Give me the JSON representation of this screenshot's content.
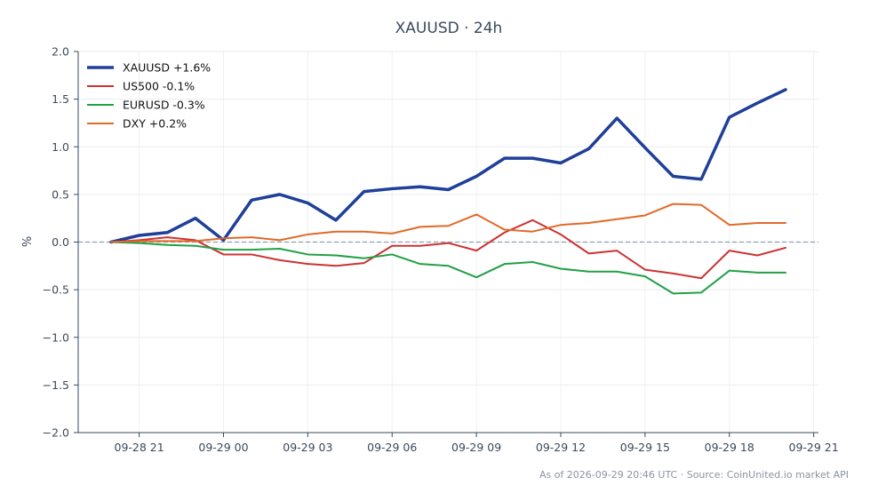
{
  "chart_data": {
    "type": "line",
    "title": "XAUUSD · 24h",
    "ylabel": "%",
    "xlabel": "",
    "ylim": [
      -2.0,
      2.0
    ],
    "yticks": [
      2.0,
      1.5,
      1.0,
      0.5,
      0.0,
      -0.5,
      -1.0,
      -1.5,
      -2.0
    ],
    "ytick_labels": [
      "2.0",
      "1.5",
      "1.0",
      "0.5",
      "0.0",
      "−0.5",
      "−1.0",
      "−1.5",
      "−2.0"
    ],
    "x_start": "2026-09-28 20:00",
    "x_end": "2026-09-29 20:00",
    "xticks": [
      "2026-09-28 21:00",
      "2026-09-29 00:00",
      "2026-09-29 03:00",
      "2026-09-29 06:00",
      "2026-09-29 09:00",
      "2026-09-29 12:00",
      "2026-09-29 15:00",
      "2026-09-29 18:00",
      "2026-09-29 21:00"
    ],
    "xtick_labels": [
      "09-28 21",
      "09-29 00",
      "09-29 03",
      "09-29 06",
      "09-29 09",
      "09-29 12",
      "09-29 15",
      "09-29 18",
      "09-29 21"
    ],
    "x": [
      "2026-09-28 20:00",
      "2026-09-28 21:00",
      "2026-09-28 22:00",
      "2026-09-28 23:00",
      "2026-09-29 00:00",
      "2026-09-29 01:00",
      "2026-09-29 02:00",
      "2026-09-29 03:00",
      "2026-09-29 04:00",
      "2026-09-29 05:00",
      "2026-09-29 06:00",
      "2026-09-29 07:00",
      "2026-09-29 08:00",
      "2026-09-29 09:00",
      "2026-09-29 10:00",
      "2026-09-29 11:00",
      "2026-09-29 12:00",
      "2026-09-29 13:00",
      "2026-09-29 14:00",
      "2026-09-29 15:00",
      "2026-09-29 16:00",
      "2026-09-29 17:00",
      "2026-09-29 18:00",
      "2026-09-29 19:00",
      "2026-09-29 20:00"
    ],
    "series": [
      {
        "name": "XAUUSD +1.6%",
        "color": "#1f3f99",
        "values": [
          0.0,
          0.07,
          0.1,
          0.25,
          0.02,
          0.44,
          0.5,
          0.41,
          0.23,
          0.53,
          0.56,
          0.58,
          0.55,
          0.69,
          0.88,
          0.88,
          0.83,
          0.98,
          1.3,
          0.99,
          0.69,
          0.66,
          1.31,
          1.46,
          1.6
        ]
      },
      {
        "name": "US500 -0.1%",
        "color": "#cc3333",
        "values": [
          0.0,
          0.02,
          0.05,
          0.02,
          -0.13,
          -0.13,
          -0.19,
          -0.23,
          -0.25,
          -0.22,
          -0.04,
          -0.04,
          -0.01,
          -0.09,
          0.1,
          0.23,
          0.08,
          -0.12,
          -0.09,
          -0.29,
          -0.33,
          -0.38,
          -0.09,
          -0.14,
          -0.06
        ]
      },
      {
        "name": "EURUSD -0.3%",
        "color": "#22a045",
        "values": [
          0.0,
          -0.01,
          -0.03,
          -0.04,
          -0.08,
          -0.08,
          -0.07,
          -0.13,
          -0.14,
          -0.17,
          -0.13,
          -0.23,
          -0.25,
          -0.37,
          -0.23,
          -0.21,
          -0.28,
          -0.31,
          -0.31,
          -0.36,
          -0.54,
          -0.53,
          -0.3,
          -0.32,
          -0.32
        ]
      },
      {
        "name": "DXY +0.2%",
        "color": "#e06a28",
        "values": [
          0.0,
          0.01,
          0.01,
          0.01,
          0.04,
          0.05,
          0.02,
          0.08,
          0.11,
          0.11,
          0.09,
          0.16,
          0.17,
          0.29,
          0.13,
          0.11,
          0.18,
          0.2,
          0.24,
          0.28,
          0.4,
          0.39,
          0.18,
          0.2,
          0.2
        ]
      }
    ],
    "baseline": 0.0,
    "grid": true,
    "legend_position": "top-left"
  },
  "footer": "As of 2026-09-29 20:46 UTC · Source: CoinUnited.io market API"
}
